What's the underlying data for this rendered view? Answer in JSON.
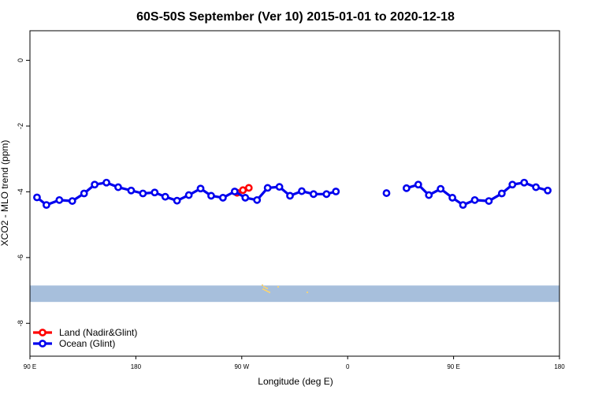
{
  "chart_data": {
    "type": "line",
    "title": "60S-50S September (Ver 10)   2015-01-01 to 2020-12-18",
    "xlabel": "Longitude (deg E)",
    "ylabel": "XCO2 - MLO trend (ppm)",
    "xlim": [
      90,
      540
    ],
    "ylim": [
      -9,
      0.9
    ],
    "x_ticks": [
      {
        "value": 90,
        "label": "90 E"
      },
      {
        "value": 180,
        "label": "180"
      },
      {
        "value": 270,
        "label": "90 W"
      },
      {
        "value": 360,
        "label": "0"
      },
      {
        "value": 450,
        "label": "90 E"
      },
      {
        "value": 540,
        "label": "180"
      }
    ],
    "y_ticks": [
      {
        "value": 0,
        "label": "0"
      },
      {
        "value": -2,
        "label": "-2"
      },
      {
        "value": -4,
        "label": "-4"
      },
      {
        "value": -6,
        "label": "-6"
      },
      {
        "value": -8,
        "label": "-8"
      }
    ],
    "legend_position": "bottom-left",
    "map_strip": {
      "ymin": -7.35,
      "ymax": -6.85,
      "ocean_color": "#a7bfdc",
      "land_color": "#f2d27a"
    },
    "series": [
      {
        "name": "Land (Nadir&Glint)",
        "color": "#ff0000",
        "segments": [
          [
            [
              266,
              -4.03
            ],
            [
              271,
              -3.95
            ],
            [
              276,
              -3.88
            ]
          ]
        ]
      },
      {
        "name": "Ocean (Glint)",
        "color": "#0000ee",
        "segments": [
          [
            [
              96,
              -4.17
            ],
            [
              104,
              -4.4
            ],
            [
              115,
              -4.25
            ],
            [
              126,
              -4.28
            ],
            [
              136,
              -4.05
            ],
            [
              145,
              -3.78
            ],
            [
              155,
              -3.72
            ],
            [
              165,
              -3.86
            ],
            [
              176,
              -3.96
            ],
            [
              186,
              -4.05
            ],
            [
              196,
              -4.02
            ],
            [
              205,
              -4.15
            ],
            [
              215,
              -4.27
            ],
            [
              225,
              -4.1
            ],
            [
              235,
              -3.9
            ],
            [
              244,
              -4.12
            ],
            [
              254,
              -4.18
            ],
            [
              264,
              -3.99
            ],
            [
              273,
              -4.18
            ],
            [
              283,
              -4.25
            ],
            [
              292,
              -3.88
            ],
            [
              302,
              -3.85
            ],
            [
              311,
              -4.12
            ],
            [
              321,
              -3.98
            ],
            [
              331,
              -4.07
            ],
            [
              342,
              -4.07
            ],
            [
              350,
              -3.99
            ]
          ],
          [
            [
              393,
              -4.04
            ]
          ],
          [
            [
              410,
              -3.89
            ],
            [
              420,
              -3.78
            ],
            [
              429,
              -4.1
            ],
            [
              439,
              -3.91
            ],
            [
              449,
              -4.18
            ],
            [
              458,
              -4.4
            ],
            [
              468,
              -4.25
            ],
            [
              480,
              -4.28
            ],
            [
              491,
              -4.05
            ],
            [
              500,
              -3.78
            ],
            [
              510,
              -3.72
            ],
            [
              520,
              -3.86
            ],
            [
              530,
              -3.96
            ]
          ]
        ]
      }
    ]
  }
}
